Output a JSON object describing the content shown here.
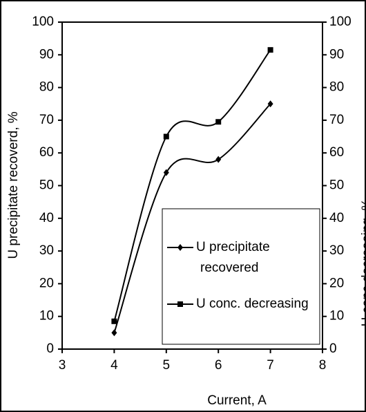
{
  "chart_data": {
    "type": "line",
    "x": [
      4,
      5,
      6,
      7
    ],
    "series": [
      {
        "name": "U precipitate recovered",
        "color": "#000000",
        "marker": "diamond",
        "values": [
          5,
          54,
          58,
          75
        ]
      },
      {
        "name": "U conc. decreasing",
        "color": "#000000",
        "marker": "square",
        "axis": "y2",
        "values": [
          8.5,
          65,
          69.5,
          91.5
        ]
      }
    ],
    "xlabel": "Current, A",
    "ylabel": "U precipitate recoverd, %",
    "y2label": "U conc decreasing, %",
    "xlim": [
      3,
      8
    ],
    "xticks": [
      3,
      4,
      5,
      6,
      7,
      8
    ],
    "ylim": [
      0,
      100
    ],
    "yticks": [
      0,
      10,
      20,
      30,
      40,
      50,
      60,
      70,
      80,
      90,
      100
    ],
    "y2lim": [
      0,
      100
    ],
    "y2ticks": [
      0,
      10,
      20,
      30,
      40,
      50,
      60,
      70,
      80,
      90,
      100
    ],
    "smooth": true,
    "legend": "lower right"
  }
}
